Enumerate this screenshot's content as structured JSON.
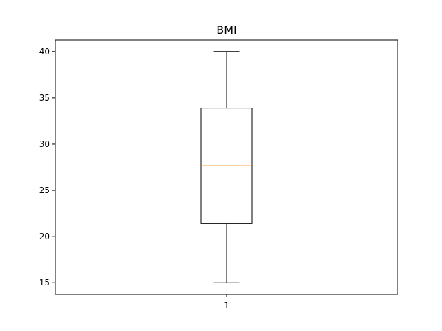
{
  "chart_data": {
    "type": "box",
    "title": "BMI",
    "xlabel": "",
    "ylabel": "",
    "categories": [
      "1"
    ],
    "boxes": [
      {
        "whisker_low": 15.0,
        "q1": 21.4,
        "median": 27.7,
        "q3": 33.9,
        "whisker_high": 40.0
      }
    ],
    "ylim": [
      13.75,
      41.25
    ],
    "yticks": [
      15,
      20,
      25,
      30,
      35,
      40
    ],
    "grid": false,
    "colors": {
      "box": "#000000",
      "median": "#ff7f0e",
      "axes": "#000000"
    }
  }
}
